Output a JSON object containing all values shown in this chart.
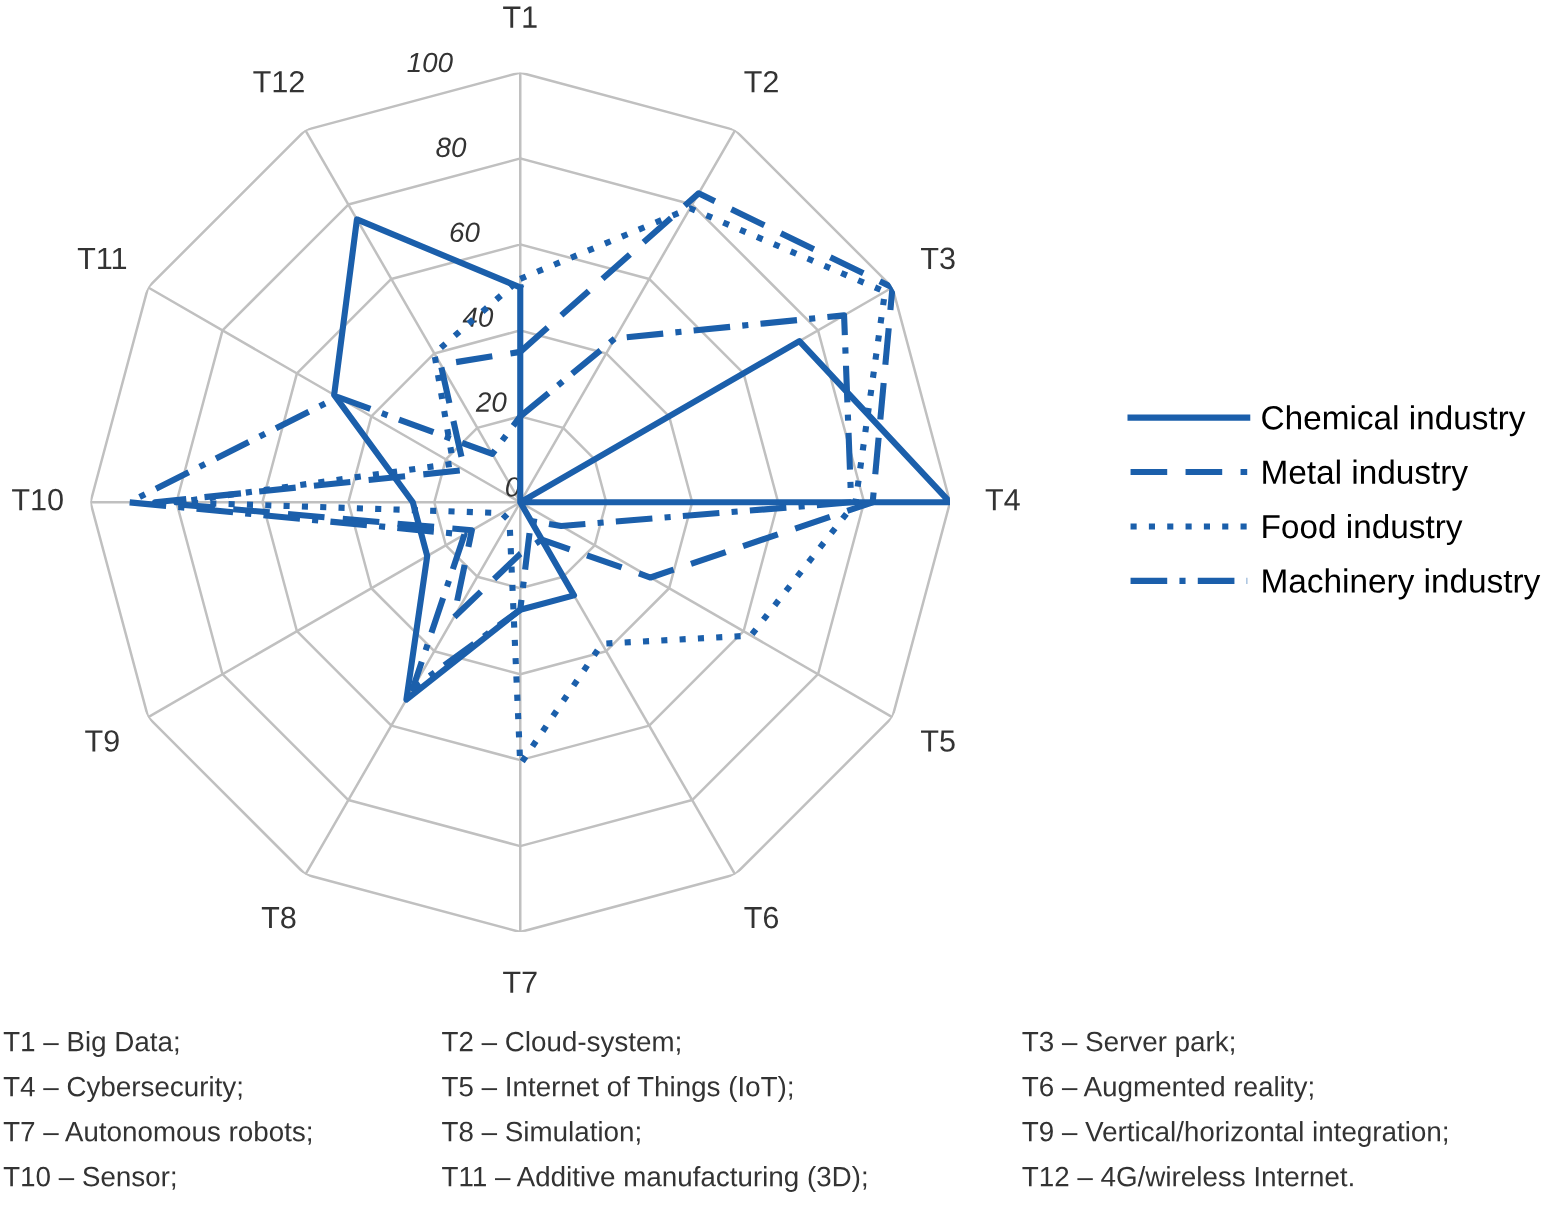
{
  "chart_data": {
    "type": "radar",
    "categories": [
      "T1",
      "T2",
      "T3",
      "T4",
      "T5",
      "T6",
      "T7",
      "T8",
      "T9",
      "T10",
      "T11",
      "T12"
    ],
    "series": [
      {
        "name": "Chemical industry",
        "color": "#1b5fab",
        "line_style": "solid",
        "values": [
          50,
          0,
          75,
          100,
          0,
          25,
          25,
          53,
          25,
          25,
          50,
          76
        ]
      },
      {
        "name": "Metal industry",
        "color": "#1b5fab",
        "line_style": "dashed",
        "values": [
          35,
          83,
          100,
          82,
          35,
          10,
          12,
          31,
          13,
          85,
          15,
          37
        ]
      },
      {
        "name": "Food industry",
        "color": "#1b5fab",
        "line_style": "dotted",
        "values": [
          52,
          79,
          98,
          78,
          62,
          38,
          61,
          5,
          5,
          80,
          18,
          40
        ]
      },
      {
        "name": "Machinery industry",
        "color": "#1b5fab",
        "line_style": "dashdot",
        "values": [
          20,
          44,
          87,
          77,
          11,
          5,
          25,
          50,
          15,
          91,
          49,
          13
        ]
      }
    ],
    "ylim": [
      0,
      100
    ],
    "yticks": [
      0,
      20,
      40,
      60,
      80,
      100
    ],
    "grid": true,
    "legend": "right",
    "marker": "none",
    "annotations": [
      "T1 – Big Data;",
      "T2 – Cloud-system;",
      "T3 – Server park;",
      "T4 – Cybersecurity;",
      "T5 – Internet of Things (IoT);",
      "T6 – Augmented reality;",
      "T7 – Autonomous robots;",
      "T8 – Simulation;",
      "T9 – Vertical/horizontal integration;",
      "T10 – Sensor;",
      "T11 – Additive manufacturing (3D);",
      "T12 – 4G/wireless Internet."
    ]
  }
}
